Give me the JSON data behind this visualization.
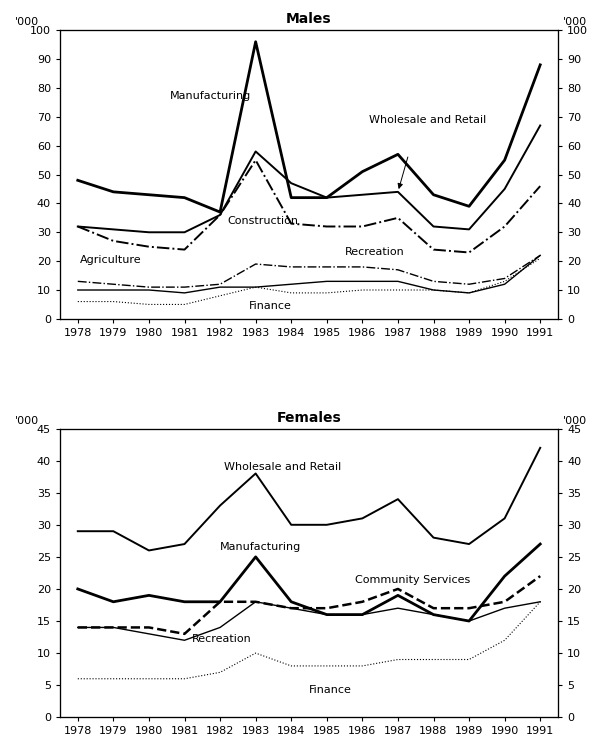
{
  "years": [
    1978,
    1979,
    1980,
    1981,
    1982,
    1983,
    1984,
    1985,
    1986,
    1987,
    1988,
    1989,
    1990,
    1991
  ],
  "males": {
    "Manufacturing": [
      48,
      44,
      43,
      42,
      37,
      96,
      42,
      42,
      51,
      57,
      43,
      39,
      55,
      88
    ],
    "Wholesale_Retail": [
      32,
      31,
      30,
      30,
      36,
      58,
      47,
      42,
      43,
      44,
      32,
      31,
      45,
      67
    ],
    "Construction": [
      32,
      27,
      25,
      24,
      36,
      55,
      33,
      32,
      32,
      35,
      24,
      23,
      32,
      46
    ],
    "Agriculture": [
      10,
      10,
      10,
      9,
      11,
      11,
      12,
      13,
      13,
      13,
      10,
      9,
      12,
      22
    ],
    "Recreation": [
      13,
      12,
      11,
      11,
      12,
      19,
      18,
      18,
      18,
      17,
      13,
      12,
      14,
      22
    ],
    "Finance": [
      6,
      6,
      5,
      5,
      8,
      11,
      9,
      9,
      10,
      10,
      10,
      9,
      13,
      21
    ]
  },
  "females": {
    "Wholesale_Retail": [
      29,
      29,
      26,
      27,
      33,
      38,
      30,
      30,
      31,
      34,
      28,
      27,
      31,
      42
    ],
    "Manufacturing": [
      20,
      18,
      19,
      18,
      18,
      25,
      18,
      16,
      16,
      19,
      16,
      15,
      22,
      27
    ],
    "Community_Services": [
      14,
      14,
      14,
      13,
      18,
      18,
      17,
      17,
      18,
      20,
      17,
      17,
      18,
      22
    ],
    "Recreation": [
      14,
      14,
      13,
      12,
      14,
      18,
      17,
      16,
      16,
      17,
      16,
      15,
      17,
      18
    ],
    "Finance": [
      6,
      6,
      6,
      6,
      7,
      10,
      8,
      8,
      8,
      9,
      9,
      9,
      12,
      18
    ]
  },
  "males_ylim": [
    0,
    100
  ],
  "males_yticks": [
    0,
    10,
    20,
    30,
    40,
    50,
    60,
    70,
    80,
    90,
    100
  ],
  "females_ylim": [
    0,
    45
  ],
  "females_yticks": [
    0,
    5,
    10,
    15,
    20,
    25,
    30,
    35,
    40,
    45
  ],
  "title_males": "Males",
  "title_females": "Females",
  "ylabel_text": "'000",
  "bg_color": "#ffffff",
  "text_color": "#000000",
  "fontsize_title": 10,
  "fontsize_tick": 8,
  "fontsize_label": 8,
  "fontsize_annot": 8
}
